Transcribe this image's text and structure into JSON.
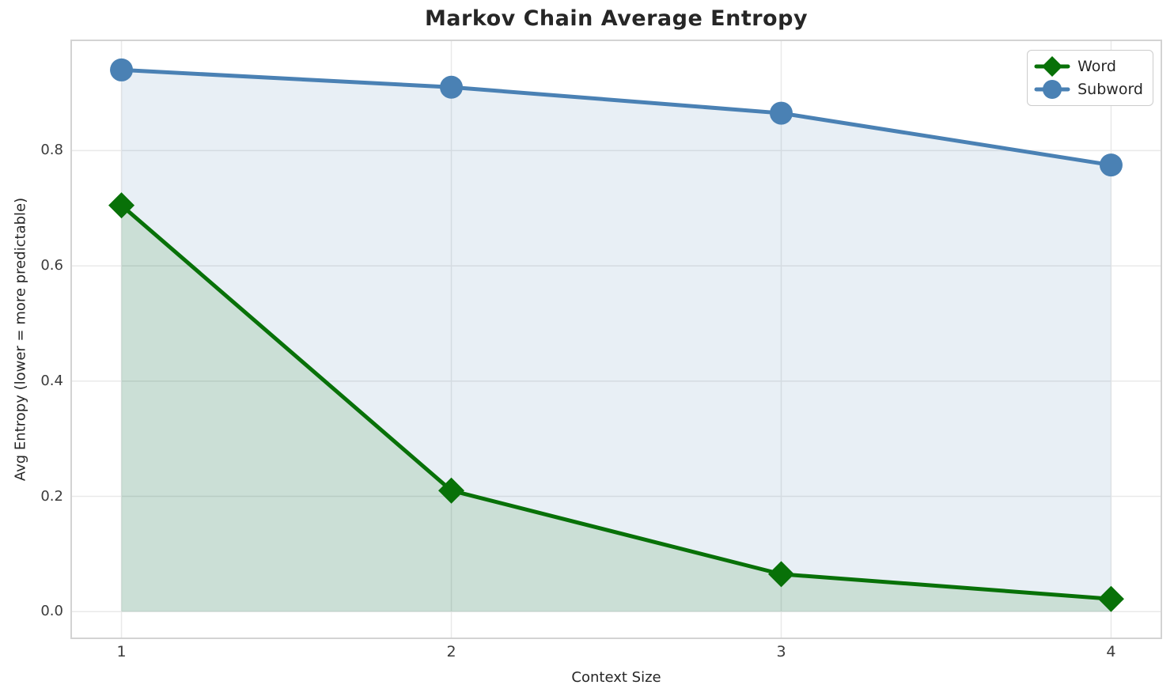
{
  "chart_data": {
    "type": "line",
    "title": "Markov Chain Average Entropy",
    "xlabel": "Context Size",
    "ylabel": "Avg Entropy (lower = more predictable)",
    "x": [
      1,
      2,
      3,
      4
    ],
    "series": [
      {
        "name": "Word",
        "values": [
          0.705,
          0.21,
          0.065,
          0.022
        ],
        "color": "#087108",
        "marker": "diamond",
        "fill_under": true
      },
      {
        "name": "Subword",
        "values": [
          0.94,
          0.91,
          0.865,
          0.775
        ],
        "color": "#4a81b4",
        "marker": "circle",
        "fill_under": true
      }
    ],
    "x_ticks": [
      "1",
      "2",
      "3",
      "4"
    ],
    "x_tick_values": [
      1,
      2,
      3,
      4
    ],
    "y_ticks": [
      "0.0",
      "0.2",
      "0.4",
      "0.6",
      "0.8"
    ],
    "y_tick_values": [
      0,
      0.2,
      0.4,
      0.6,
      0.8
    ],
    "xlim": [
      0.85,
      4.15
    ],
    "ylim": [
      -0.045,
      0.99
    ],
    "grid": true,
    "grid_color": "#e9e9e9",
    "frame_color": "#d3d3d3",
    "fill_opacity": 0.13,
    "line_width": 5,
    "legend_position": "upper right"
  }
}
